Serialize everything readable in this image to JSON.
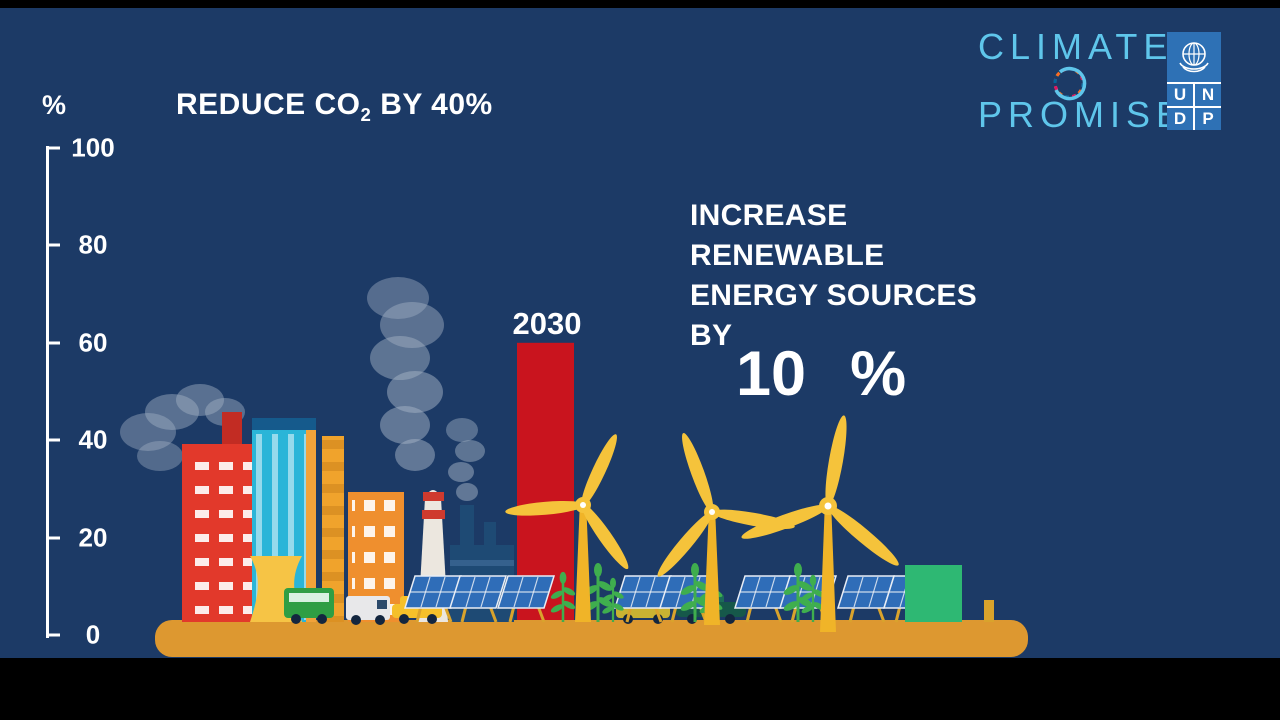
{
  "colors": {
    "background_navy": "#1c3a66",
    "letterbox_black": "#000000",
    "bar_red": "#c9141e",
    "ground_orange": "#dd9830",
    "brand_cyan": "#5fc6eb",
    "undp_blue": "#2e71b5",
    "turbine_yellow": "#f0b428",
    "plant_green": "#3fae4e",
    "solar_panel_blue": "#2f6db8",
    "storage_box_green": "#2eb873",
    "text_white": "#ffffff"
  },
  "axis": {
    "unit": "%",
    "ticks": [
      "100",
      "80",
      "60",
      "40",
      "20",
      "0"
    ]
  },
  "title": {
    "part1": "REDUCE CO",
    "sub": "2",
    "part2": " BY 40%"
  },
  "bar": {
    "year_label": "2030"
  },
  "renewable": {
    "lines": [
      "INCREASE",
      "RENEWABLE",
      "ENERGY SOURCES",
      "BY"
    ],
    "big_number": "10",
    "big_percent": "%"
  },
  "logo": {
    "line1": "CLIMATE",
    "line2": "PROMISE",
    "undp": [
      "U",
      "N",
      "D",
      "P"
    ]
  },
  "icons": {
    "smoke": "smoke-plume-icon",
    "turbine": "wind-turbine-icon",
    "solar": "solar-panel-icon",
    "plant": "sprout-icon",
    "ring": "climate-promise-ring-icon",
    "un_emblem": "un-emblem-icon"
  },
  "chart_data": {
    "type": "bar",
    "categories": [
      "2030"
    ],
    "values": [
      60
    ],
    "title": "REDUCE CO2 BY 40%",
    "xlabel": "",
    "ylabel": "%",
    "ylim": [
      0,
      100
    ],
    "grid": false,
    "legend": "none",
    "annotations": [
      "2030",
      "INCREASE RENEWABLE ENERGY SOURCES BY 10 %"
    ]
  }
}
